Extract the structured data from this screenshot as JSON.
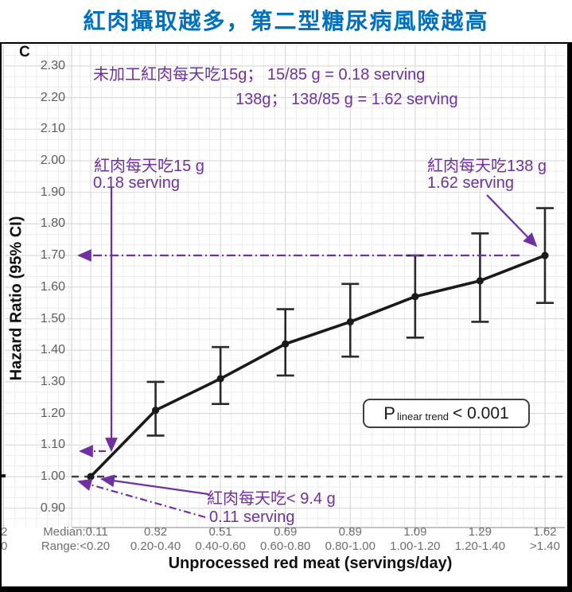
{
  "title": "紅肉攝取越多，第二型糖尿病風險越高",
  "panel_label": "C",
  "colors": {
    "title_blue": "#0070C0",
    "annotation_purple": "#7030A0",
    "series_black": "#1a1a1a",
    "grid_minor": "#ececec",
    "grid_major": "#dcdcdc",
    "tick_label_gray": "#5d5d5d"
  },
  "chart_data": {
    "type": "line",
    "title": "",
    "xlabel": "Unprocessed red meat (servings/day)",
    "ylabel": "Hazard Ratio (95% CI)",
    "ylim": [
      0.85,
      2.35
    ],
    "grid": true,
    "legend": "none",
    "yticks": [
      "2.30",
      "2.20",
      "2.10",
      "2.00",
      "1.90",
      "1.80",
      "1.70",
      "1.60",
      "1.50",
      "1.40",
      "1.30",
      "1.20",
      "1.10",
      "1.00",
      "0.90"
    ],
    "x_tick_medians": [
      "Median:0.11",
      "0.32",
      "0.51",
      "0.69",
      "0.89",
      "1.09",
      "1.29",
      "1.62"
    ],
    "x_tick_ranges": [
      "Range:<0.20",
      "0.20-0.40",
      "0.40-0.60",
      "0.60-0.80",
      "0.80-1.00",
      "1.00-1.20",
      "1.20-1.40",
      ">1.40"
    ],
    "series": [
      {
        "name": "Hazard ratio (95% CI)",
        "values": [
          1.0,
          1.21,
          1.31,
          1.42,
          1.49,
          1.57,
          1.62,
          1.7
        ],
        "ci_low": [
          null,
          1.13,
          1.23,
          1.32,
          1.38,
          1.44,
          1.49,
          1.55
        ],
        "ci_high": [
          null,
          1.3,
          1.41,
          1.53,
          1.61,
          1.7,
          1.77,
          1.85
        ]
      }
    ],
    "reference_line": 1.0,
    "highlight_hr_lines": [
      1.7,
      1.08
    ],
    "p_annotation": {
      "symbol": "P",
      "subscript": "linear trend",
      "value": "< 0.001"
    }
  },
  "annotations": {
    "top_line1": "未加工紅肉每天吃15g；  15/85 g = 0.18 serving",
    "top_line2": "138g；  138/85 g = 1.62 serving",
    "left_line1": "紅肉每天吃15 g",
    "left_line2": "0.18 serving",
    "right_line1": "紅肉每天吃138 g",
    "right_line2": "1.62 serving",
    "bottom_line1": "紅肉每天吃< 9.4 g",
    "bottom_line2": "0.11 serving"
  },
  "edge_artifacts": {
    "digit_top": "2",
    "digit_bottom": "0"
  }
}
